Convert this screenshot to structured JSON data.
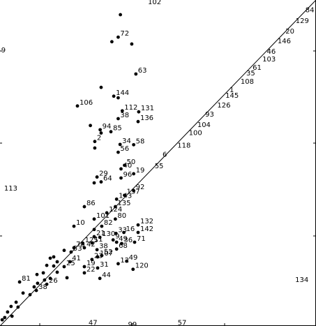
{
  "chart_data": {
    "type": "scatter",
    "title": "",
    "xlabel": "",
    "ylabel": "",
    "xlim": [
      0,
      100
    ],
    "ylim": [
      0,
      100
    ],
    "grid": false,
    "legend": "none",
    "colors": {
      "background": "#ffffff",
      "ink": "#000000"
    },
    "reference_line": {
      "from": [
        0,
        0
      ],
      "to": [
        100,
        100
      ],
      "label": ""
    },
    "line_labels": [
      {
        "label": "84",
        "x": 97.3,
        "y": 97.1
      },
      {
        "label": "129",
        "x": 94.2,
        "y": 93.8
      },
      {
        "label": "20",
        "x": 91.0,
        "y": 90.6
      },
      {
        "label": "146",
        "x": 88.5,
        "y": 87.6
      },
      {
        "label": "46",
        "x": 85.1,
        "y": 84.4
      },
      {
        "label": "103",
        "x": 83.7,
        "y": 82.0
      },
      {
        "label": "61",
        "x": 80.6,
        "y": 79.4
      },
      {
        "label": "35",
        "x": 78.6,
        "y": 77.7
      },
      {
        "label": "108",
        "x": 76.8,
        "y": 75.2
      },
      {
        "label": "1",
        "x": 73.3,
        "y": 72.6
      },
      {
        "label": "145",
        "x": 72.0,
        "y": 70.9
      },
      {
        "label": "126",
        "x": 69.4,
        "y": 67.9
      },
      {
        "label": "93",
        "x": 65.6,
        "y": 65.1
      },
      {
        "label": "104",
        "x": 63.1,
        "y": 61.9
      },
      {
        "label": "100",
        "x": 60.4,
        "y": 59.4
      },
      {
        "label": "118",
        "x": 56.8,
        "y": 55.6
      },
      {
        "label": "6",
        "x": 52.1,
        "y": 52.8
      },
      {
        "label": "55",
        "x": 49.6,
        "y": 49.3
      }
    ],
    "points": [
      {
        "label": "",
        "x": 38.1,
        "y": 95.5
      },
      {
        "label": "72",
        "x": 37.4,
        "y": 88.6
      },
      {
        "label": "",
        "x": 35.4,
        "y": 87.2
      },
      {
        "label": "",
        "x": 41.7,
        "y": 86.5
      },
      {
        "label": "63",
        "x": 43.0,
        "y": 77.3
      },
      {
        "label": "",
        "x": 32.0,
        "y": 73.2
      },
      {
        "label": "144",
        "x": 36.0,
        "y": 70.5
      },
      {
        "label": "",
        "x": 37.4,
        "y": 70.0
      },
      {
        "label": "106",
        "x": 24.5,
        "y": 67.5
      },
      {
        "label": "112",
        "x": 38.7,
        "y": 66.0
      },
      {
        "label": "131",
        "x": 43.9,
        "y": 65.7
      },
      {
        "label": "38",
        "x": 37.4,
        "y": 63.6
      },
      {
        "label": "136",
        "x": 43.7,
        "y": 62.7
      },
      {
        "label": "",
        "x": 28.6,
        "y": 61.5
      },
      {
        "label": "94",
        "x": 31.7,
        "y": 60.2
      },
      {
        "label": "85",
        "x": 35.1,
        "y": 59.6
      },
      {
        "label": "",
        "x": 32.0,
        "y": 59.2
      },
      {
        "label": "2",
        "x": 30.0,
        "y": 56.6
      },
      {
        "label": "34",
        "x": 38.0,
        "y": 55.7
      },
      {
        "label": "58",
        "x": 42.3,
        "y": 55.6
      },
      {
        "label": "",
        "x": 30.0,
        "y": 54.6
      },
      {
        "label": "56",
        "x": 37.4,
        "y": 53.3
      },
      {
        "label": "50",
        "x": 39.4,
        "y": 49.3
      },
      {
        "label": "40",
        "x": 38.3,
        "y": 48.2
      },
      {
        "label": "19",
        "x": 42.3,
        "y": 46.7
      },
      {
        "label": "96",
        "x": 38.3,
        "y": 45.4
      },
      {
        "label": "29",
        "x": 30.7,
        "y": 45.7
      },
      {
        "label": "64",
        "x": 32.0,
        "y": 44.2
      },
      {
        "label": "",
        "x": 29.8,
        "y": 43.9
      },
      {
        "label": "92",
        "x": 42.3,
        "y": 41.5
      },
      {
        "label": "137",
        "x": 39.4,
        "y": 40.1
      },
      {
        "label": "143",
        "x": 36.9,
        "y": 38.9
      },
      {
        "label": "86",
        "x": 26.7,
        "y": 36.6
      },
      {
        "label": "135",
        "x": 36.5,
        "y": 36.6
      },
      {
        "label": "124",
        "x": 33.8,
        "y": 34.7
      },
      {
        "label": "101",
        "x": 29.8,
        "y": 32.8
      },
      {
        "label": "80",
        "x": 36.5,
        "y": 32.8
      },
      {
        "label": "132",
        "x": 43.7,
        "y": 31.0
      },
      {
        "label": "10",
        "x": 23.4,
        "y": 30.6
      },
      {
        "label": "82",
        "x": 32.2,
        "y": 30.6
      },
      {
        "label": "142",
        "x": 43.7,
        "y": 28.7
      },
      {
        "label": "",
        "x": 29.8,
        "y": 29.6
      },
      {
        "label": "33",
        "x": 36.7,
        "y": 28.4
      },
      {
        "label": "16",
        "x": 39.2,
        "y": 28.7
      },
      {
        "label": "21",
        "x": 29.8,
        "y": 27.4
      },
      {
        "label": "130",
        "x": 31.6,
        "y": 27.2
      },
      {
        "label": "9",
        "x": 35.8,
        "y": 26.4
      },
      {
        "label": "49",
        "x": 36.9,
        "y": 25.7
      },
      {
        "label": "71",
        "x": 42.6,
        "y": 25.7
      },
      {
        "label": "125",
        "x": 26.2,
        "y": 25.3
      },
      {
        "label": "11",
        "x": 29.1,
        "y": 25.5
      },
      {
        "label": "36",
        "x": 38.5,
        "y": 25.3
      },
      {
        "label": "78",
        "x": 23.4,
        "y": 24.0
      },
      {
        "label": "42",
        "x": 26.7,
        "y": 24.0
      },
      {
        "label": "68",
        "x": 36.9,
        "y": 23.6
      },
      {
        "label": "38",
        "x": 30.7,
        "y": 23.4
      },
      {
        "label": "",
        "x": 20.3,
        "y": 23.2
      },
      {
        "label": "53",
        "x": 22.5,
        "y": 22.7
      },
      {
        "label": "52",
        "x": 32.2,
        "y": 21.6
      },
      {
        "label": "107",
        "x": 30.9,
        "y": 21.2
      },
      {
        "label": "",
        "x": 17.0,
        "y": 21.2
      },
      {
        "label": "23",
        "x": 29.1,
        "y": 20.4
      },
      {
        "label": "49",
        "x": 40.1,
        "y": 19.9
      },
      {
        "label": "",
        "x": 15.9,
        "y": 20.8
      },
      {
        "label": "12",
        "x": 37.4,
        "y": 19.1
      },
      {
        "label": "41",
        "x": 22.1,
        "y": 19.7
      },
      {
        "label": "",
        "x": 18.1,
        "y": 19.7
      },
      {
        "label": "120",
        "x": 42.1,
        "y": 17.4
      },
      {
        "label": "19",
        "x": 26.7,
        "y": 18.2
      },
      {
        "label": "31",
        "x": 30.9,
        "y": 17.8
      },
      {
        "label": "25",
        "x": 20.3,
        "y": 18.2
      },
      {
        "label": "",
        "x": 17.0,
        "y": 18.4
      },
      {
        "label": "",
        "x": 14.8,
        "y": 18.6
      },
      {
        "label": "22",
        "x": 26.7,
        "y": 16.3
      },
      {
        "label": "",
        "x": 18.1,
        "y": 16.5
      },
      {
        "label": "",
        "x": 13.7,
        "y": 16.3
      },
      {
        "label": "",
        "x": 11.7,
        "y": 15.8
      },
      {
        "label": "44",
        "x": 31.6,
        "y": 14.6
      },
      {
        "label": "",
        "x": 21.2,
        "y": 14.8
      },
      {
        "label": "",
        "x": 15.9,
        "y": 14.6
      },
      {
        "label": "",
        "x": 14.1,
        "y": 14.1
      },
      {
        "label": "81",
        "x": 6.2,
        "y": 13.5
      },
      {
        "label": "",
        "x": 11.9,
        "y": 13.1
      },
      {
        "label": "",
        "x": 10.8,
        "y": 12.0
      },
      {
        "label": "26",
        "x": 14.8,
        "y": 12.8
      },
      {
        "label": "38",
        "x": 11.5,
        "y": 10.9
      },
      {
        "label": "",
        "x": 7.3,
        "y": 10.1
      },
      {
        "label": "",
        "x": 9.5,
        "y": 9.6
      },
      {
        "label": "",
        "x": 5.1,
        "y": 7.3
      },
      {
        "label": "",
        "x": 3.5,
        "y": 6.0
      },
      {
        "label": "",
        "x": 5.7,
        "y": 5.8
      },
      {
        "label": "",
        "x": 2.4,
        "y": 4.3
      },
      {
        "label": "",
        "x": 1.5,
        "y": 2.6
      },
      {
        "label": "",
        "x": 3.8,
        "y": 3.0
      },
      {
        "label": "",
        "x": 0.7,
        "y": 1.9
      }
    ],
    "isolated_labels": [
      {
        "label": "102",
        "x": 46.8,
        "y": 99.6
      },
      {
        "label": "9",
        "x": 0.4,
        "y": 84.8
      },
      {
        "label": "113",
        "x": 1.3,
        "y": 42.4
      },
      {
        "label": "134",
        "x": 93.4,
        "y": 14.3
      },
      {
        "label": "47",
        "x": 28.0,
        "y": 1.2
      },
      {
        "label": "99",
        "x": 40.5,
        "y": 0.6
      },
      {
        "label": "57",
        "x": 56.2,
        "y": 1.2
      }
    ]
  }
}
